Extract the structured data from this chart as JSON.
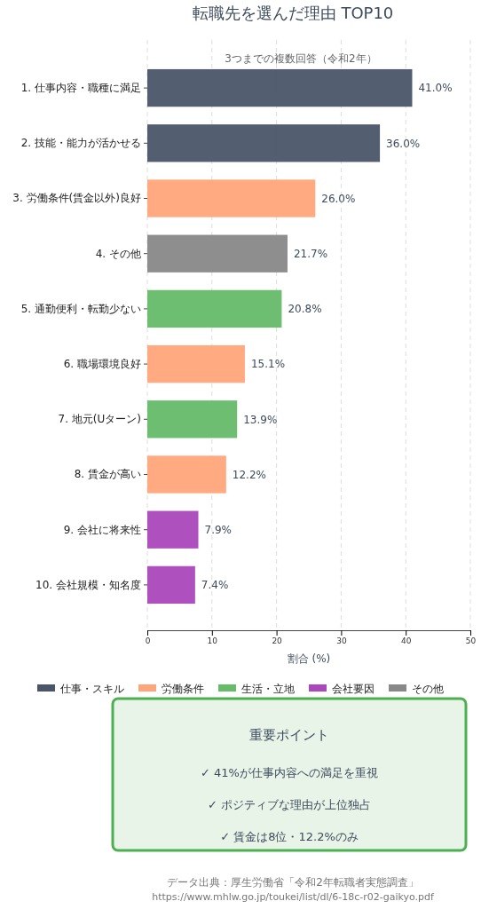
{
  "chart_data": {
    "type": "bar",
    "orientation": "horizontal",
    "title": "転職先を選んだ理由 TOP10",
    "subtitle": "3つまでの複数回答（令和2年）",
    "xlabel": "割合 (%)",
    "categories": [
      "1. 仕事内容・職種に満足",
      "2. 技能・能力が活かせる",
      "3. 労働条件(賃金以外)良好",
      "4. その他",
      "5. 通勤便利・転勤少ない",
      "6. 職場環境良好",
      "7. 地元(Uターン)",
      "8. 賃金が高い",
      "9. 会社に将来性",
      "10. 会社規模・知名度"
    ],
    "series": [
      {
        "name": "仕事・スキル",
        "color": "#4a5568",
        "values": [
          41.0,
          36.0,
          null,
          null,
          null,
          null,
          null,
          null,
          null,
          null
        ],
        "value_labels": [
          "41.0%",
          "36.0%",
          null,
          null,
          null,
          null,
          null,
          null,
          null,
          null
        ]
      },
      {
        "name": "労働条件",
        "color": "#ffa57a",
        "values": [
          null,
          null,
          26.0,
          null,
          null,
          15.1,
          null,
          12.2,
          null,
          null
        ],
        "value_labels": [
          null,
          null,
          "26.0%",
          null,
          null,
          "15.1%",
          null,
          "12.2%",
          null,
          null
        ]
      },
      {
        "name": "生活・立地",
        "color": "#66bb6a",
        "values": [
          null,
          null,
          null,
          null,
          20.8,
          null,
          13.9,
          null,
          null,
          null
        ],
        "value_labels": [
          null,
          null,
          null,
          null,
          "20.8%",
          null,
          "13.9%",
          null,
          null,
          null
        ]
      },
      {
        "name": "会社要因",
        "color": "#ab47bc",
        "values": [
          null,
          null,
          null,
          null,
          null,
          null,
          null,
          null,
          7.9,
          7.4
        ],
        "value_labels": [
          null,
          null,
          null,
          null,
          null,
          null,
          null,
          null,
          "7.9%",
          "7.4%"
        ]
      },
      {
        "name": "その他",
        "color": "#888888",
        "values": [
          null,
          null,
          null,
          21.7,
          null,
          null,
          null,
          null,
          null,
          null
        ],
        "value_labels": [
          null,
          null,
          null,
          "21.7%",
          null,
          null,
          null,
          null,
          null,
          null
        ]
      }
    ],
    "xlim": [
      0,
      50
    ],
    "xticks": [
      0,
      10,
      20,
      30,
      40,
      50
    ],
    "grid": "x",
    "legend": "bottom",
    "annotations": [
      "重要ポイント",
      "✓ 41%が仕事内容への満足を重視",
      "✓ ポジティブな理由が上位独占",
      "✓ 賃金は8位・12.2%のみ",
      "データ出典：厚生労働省「令和2年転職者実態調査」",
      "https://www.mhlw.go.jp/toukei/list/dl/6-18c-r02-gaikyo.pdf"
    ]
  }
}
